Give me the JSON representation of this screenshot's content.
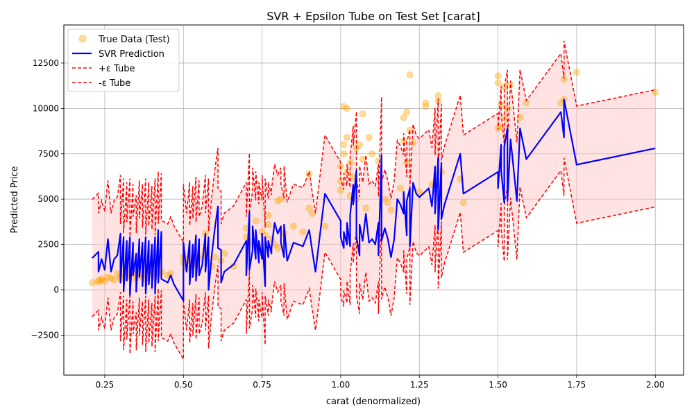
{
  "chart_data": {
    "type": "line",
    "title": "SVR + Epsilon Tube on Test Set [carat]",
    "xlabel": "carat (denormalized)",
    "ylabel": "Predicted Price",
    "xlim": [
      0.12,
      2.09
    ],
    "ylim": [
      -4700,
      14600
    ],
    "grid": true,
    "legend_position": "top-left",
    "epsilon": 3230,
    "x_ticks": [
      0.25,
      0.5,
      0.75,
      1.0,
      1.25,
      1.5,
      1.75,
      2.0
    ],
    "x_tick_labels": [
      "0.25",
      "0.50",
      "0.75",
      "1.00",
      "1.25",
      "1.50",
      "1.75",
      "2.00"
    ],
    "y_ticks": [
      -2500,
      0,
      2500,
      5000,
      7500,
      10000,
      12500
    ],
    "y_tick_labels": [
      "−2500",
      "0",
      "2500",
      "5000",
      "7500",
      "10000",
      "12500"
    ],
    "legend": [
      {
        "label": "True Data (Test)",
        "kind": "marker",
        "color": "#ffa500"
      },
      {
        "label": "SVR Prediction",
        "kind": "line",
        "color": "#0000ff"
      },
      {
        "label": "+ε Tube",
        "kind": "dashed",
        "color": "#ff0000"
      },
      {
        "label": "-ε Tube",
        "kind": "dashed",
        "color": "#ff0000"
      }
    ],
    "colors": {
      "scatter": "#ffa500",
      "prediction": "#0000ff",
      "tube": "#ff0000",
      "fill": "#ffc0c0"
    },
    "series": [
      {
        "name": "SVR Prediction",
        "points": [
          [
            0.21,
            1750
          ],
          [
            0.23,
            2100
          ],
          [
            0.23,
            1000
          ],
          [
            0.24,
            1700
          ],
          [
            0.25,
            1100
          ],
          [
            0.26,
            2800
          ],
          [
            0.27,
            1000
          ],
          [
            0.28,
            1700
          ],
          [
            0.29,
            1900
          ],
          [
            0.3,
            3100
          ],
          [
            0.3,
            400
          ],
          [
            0.31,
            2900
          ],
          [
            0.31,
            -100
          ],
          [
            0.32,
            2700
          ],
          [
            0.32,
            500
          ],
          [
            0.33,
            2900
          ],
          [
            0.33,
            -300
          ],
          [
            0.34,
            2600
          ],
          [
            0.34,
            800
          ],
          [
            0.35,
            2000
          ],
          [
            0.35,
            -100
          ],
          [
            0.36,
            2800
          ],
          [
            0.36,
            700
          ],
          [
            0.37,
            2600
          ],
          [
            0.37,
            200
          ],
          [
            0.38,
            2900
          ],
          [
            0.38,
            -200
          ],
          [
            0.39,
            2700
          ],
          [
            0.39,
            300
          ],
          [
            0.4,
            2500
          ],
          [
            0.4,
            100
          ],
          [
            0.41,
            2900
          ],
          [
            0.41,
            -200
          ],
          [
            0.42,
            3300
          ],
          [
            0.42,
            400
          ],
          [
            0.43,
            3200
          ],
          [
            0.43,
            600
          ],
          [
            0.45,
            400
          ],
          [
            0.46,
            800
          ],
          [
            0.47,
            300
          ],
          [
            0.5,
            -600
          ],
          [
            0.5,
            2600
          ],
          [
            0.51,
            1000
          ],
          [
            0.52,
            2700
          ],
          [
            0.52,
            300
          ],
          [
            0.53,
            2500
          ],
          [
            0.53,
            700
          ],
          [
            0.54,
            3000
          ],
          [
            0.54,
            500
          ],
          [
            0.55,
            2800
          ],
          [
            0.55,
            800
          ],
          [
            0.56,
            1400
          ],
          [
            0.57,
            3100
          ],
          [
            0.57,
            1000
          ],
          [
            0.58,
            2900
          ],
          [
            0.58,
            0
          ],
          [
            0.59,
            1900
          ],
          [
            0.6,
            3400
          ],
          [
            0.61,
            4600
          ],
          [
            0.61,
            2300
          ],
          [
            0.62,
            2200
          ],
          [
            0.62,
            400
          ],
          [
            0.63,
            1000
          ],
          [
            0.66,
            1400
          ],
          [
            0.7,
            2700
          ],
          [
            0.7,
            800
          ],
          [
            0.71,
            4300
          ],
          [
            0.71,
            1100
          ],
          [
            0.72,
            2200
          ],
          [
            0.72,
            3500
          ],
          [
            0.73,
            1700
          ],
          [
            0.73,
            3300
          ],
          [
            0.74,
            1500
          ],
          [
            0.74,
            2700
          ],
          [
            0.75,
            1700
          ],
          [
            0.75,
            3100
          ],
          [
            0.76,
            200
          ],
          [
            0.76,
            2900
          ],
          [
            0.77,
            1800
          ],
          [
            0.77,
            2700
          ],
          [
            0.78,
            2000
          ],
          [
            0.78,
            2300
          ],
          [
            0.79,
            3700
          ],
          [
            0.8,
            3100
          ],
          [
            0.81,
            3500
          ],
          [
            0.81,
            2600
          ],
          [
            0.82,
            1800
          ],
          [
            0.82,
            3600
          ],
          [
            0.83,
            1600
          ],
          [
            0.85,
            2600
          ],
          [
            0.88,
            2400
          ],
          [
            0.9,
            3300
          ],
          [
            0.91,
            2100
          ],
          [
            0.92,
            1000
          ],
          [
            0.95,
            5300
          ],
          [
            1.0,
            3800
          ],
          [
            1.0,
            2900
          ],
          [
            1.01,
            2300
          ],
          [
            1.01,
            3200
          ],
          [
            1.02,
            2500
          ],
          [
            1.02,
            3700
          ],
          [
            1.03,
            2400
          ],
          [
            1.03,
            4100
          ],
          [
            1.04,
            5800
          ],
          [
            1.04,
            4700
          ],
          [
            1.05,
            6600
          ],
          [
            1.05,
            2900
          ],
          [
            1.06,
            1900
          ],
          [
            1.06,
            3600
          ],
          [
            1.07,
            2700
          ],
          [
            1.08,
            4200
          ],
          [
            1.09,
            2600
          ],
          [
            1.1,
            2800
          ],
          [
            1.11,
            2500
          ],
          [
            1.12,
            3700
          ],
          [
            1.12,
            1900
          ],
          [
            1.13,
            7400
          ],
          [
            1.13,
            2700
          ],
          [
            1.14,
            3400
          ],
          [
            1.15,
            2800
          ],
          [
            1.16,
            1800
          ],
          [
            1.17,
            2800
          ],
          [
            1.18,
            5000
          ],
          [
            1.19,
            4700
          ],
          [
            1.2,
            4200
          ],
          [
            1.2,
            5400
          ],
          [
            1.21,
            3000
          ],
          [
            1.21,
            4900
          ],
          [
            1.22,
            5600
          ],
          [
            1.22,
            2400
          ],
          [
            1.23,
            5900
          ],
          [
            1.24,
            5300
          ],
          [
            1.25,
            5100
          ],
          [
            1.28,
            5600
          ],
          [
            1.29,
            4600
          ],
          [
            1.3,
            6800
          ],
          [
            1.3,
            4200
          ],
          [
            1.31,
            7300
          ],
          [
            1.31,
            3300
          ],
          [
            1.32,
            7000
          ],
          [
            1.32,
            3900
          ],
          [
            1.33,
            4700
          ],
          [
            1.38,
            7500
          ],
          [
            1.39,
            5300
          ],
          [
            1.5,
            6500
          ],
          [
            1.5,
            5600
          ],
          [
            1.51,
            8000
          ],
          [
            1.51,
            6600
          ],
          [
            1.52,
            4800
          ],
          [
            1.52,
            7900
          ],
          [
            1.53,
            8900
          ],
          [
            1.53,
            4900
          ],
          [
            1.54,
            8300
          ],
          [
            1.56,
            4900
          ],
          [
            1.57,
            8900
          ],
          [
            1.59,
            7200
          ],
          [
            1.7,
            9800
          ],
          [
            1.71,
            8400
          ],
          [
            1.71,
            10500
          ],
          [
            1.75,
            6900
          ],
          [
            2.0,
            7800
          ]
        ]
      }
    ],
    "scatter": [
      [
        0.21,
        400
      ],
      [
        0.23,
        500
      ],
      [
        0.23,
        450
      ],
      [
        0.24,
        600
      ],
      [
        0.24,
        520
      ],
      [
        0.25,
        480
      ],
      [
        0.26,
        700
      ],
      [
        0.27,
        640
      ],
      [
        0.28,
        550
      ],
      [
        0.29,
        900
      ],
      [
        0.3,
        620
      ],
      [
        0.3,
        760
      ],
      [
        0.31,
        900
      ],
      [
        0.32,
        700
      ],
      [
        0.33,
        850
      ],
      [
        0.34,
        650
      ],
      [
        0.35,
        900
      ],
      [
        0.36,
        700
      ],
      [
        0.37,
        800
      ],
      [
        0.38,
        600
      ],
      [
        0.39,
        1000
      ],
      [
        0.4,
        900
      ],
      [
        0.41,
        700
      ],
      [
        0.42,
        850
      ],
      [
        0.43,
        1000
      ],
      [
        0.45,
        800
      ],
      [
        0.46,
        900
      ],
      [
        0.5,
        1500
      ],
      [
        0.5,
        1800
      ],
      [
        0.51,
        1200
      ],
      [
        0.52,
        1600
      ],
      [
        0.53,
        1500
      ],
      [
        0.54,
        1400
      ],
      [
        0.55,
        1700
      ],
      [
        0.56,
        1900
      ],
      [
        0.57,
        2200
      ],
      [
        0.57,
        3100
      ],
      [
        0.58,
        1500
      ],
      [
        0.59,
        1300
      ],
      [
        0.6,
        1800
      ],
      [
        0.62,
        1600
      ],
      [
        0.63,
        2000
      ],
      [
        0.66,
        1300
      ],
      [
        0.7,
        2900
      ],
      [
        0.7,
        3400
      ],
      [
        0.71,
        2700
      ],
      [
        0.72,
        2500
      ],
      [
        0.73,
        3800
      ],
      [
        0.74,
        2400
      ],
      [
        0.75,
        3200
      ],
      [
        0.76,
        3000
      ],
      [
        0.77,
        4100
      ],
      [
        0.77,
        3600
      ],
      [
        0.78,
        2800
      ],
      [
        0.79,
        2500
      ],
      [
        0.8,
        2300
      ],
      [
        0.8,
        4900
      ],
      [
        0.81,
        5000
      ],
      [
        0.82,
        3100
      ],
      [
        0.85,
        3500
      ],
      [
        0.88,
        3200
      ],
      [
        0.9,
        4500
      ],
      [
        0.9,
        6400
      ],
      [
        0.91,
        4200
      ],
      [
        0.95,
        3500
      ],
      [
        1.0,
        6000
      ],
      [
        1.0,
        5500
      ],
      [
        1.0,
        6800
      ],
      [
        1.01,
        8000
      ],
      [
        1.01,
        10100
      ],
      [
        1.01,
        7500
      ],
      [
        1.02,
        10000
      ],
      [
        1.02,
        6500
      ],
      [
        1.02,
        8400
      ],
      [
        1.03,
        7000
      ],
      [
        1.03,
        5200
      ],
      [
        1.04,
        6200
      ],
      [
        1.05,
        5000
      ],
      [
        1.05,
        7800
      ],
      [
        1.06,
        8000
      ],
      [
        1.07,
        9700
      ],
      [
        1.07,
        7200
      ],
      [
        1.08,
        4500
      ],
      [
        1.09,
        8400
      ],
      [
        1.1,
        7500
      ],
      [
        1.12,
        7100
      ],
      [
        1.14,
        5000
      ],
      [
        1.15,
        4800
      ],
      [
        1.16,
        4400
      ],
      [
        1.19,
        5600
      ],
      [
        1.2,
        9500
      ],
      [
        1.2,
        8200
      ],
      [
        1.21,
        9800
      ],
      [
        1.21,
        7000
      ],
      [
        1.22,
        11850
      ],
      [
        1.22,
        8800
      ],
      [
        1.23,
        8100
      ],
      [
        1.25,
        5400
      ],
      [
        1.27,
        10300
      ],
      [
        1.27,
        10100
      ],
      [
        1.29,
        5800
      ],
      [
        1.31,
        10700
      ],
      [
        1.31,
        10400
      ],
      [
        1.32,
        6500
      ],
      [
        1.38,
        6100
      ],
      [
        1.39,
        4800
      ],
      [
        1.5,
        11800
      ],
      [
        1.5,
        11400
      ],
      [
        1.5,
        8900
      ],
      [
        1.51,
        9000
      ],
      [
        1.51,
        10200
      ],
      [
        1.52,
        11200
      ],
      [
        1.52,
        9500
      ],
      [
        1.53,
        10000
      ],
      [
        1.54,
        11300
      ],
      [
        1.57,
        9500
      ],
      [
        1.59,
        10300
      ],
      [
        1.7,
        10300
      ],
      [
        1.71,
        11600
      ],
      [
        1.71,
        10500
      ],
      [
        1.75,
        12000
      ],
      [
        2.0,
        10900
      ]
    ]
  }
}
